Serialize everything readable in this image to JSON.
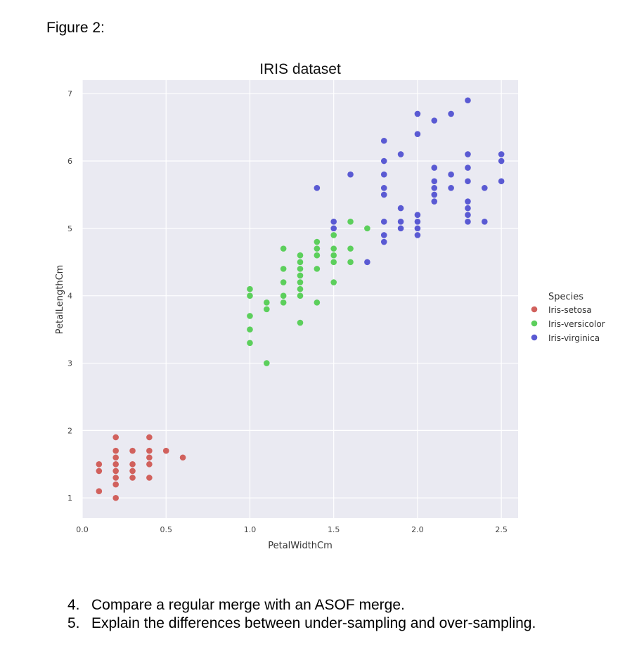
{
  "figure_caption": "Figure 2:",
  "questions": [
    {
      "number": "4.",
      "text": "Compare a regular merge with an ASOF merge."
    },
    {
      "number": "5.",
      "text": "Explain the differences between under-sampling and over-sampling."
    }
  ],
  "chart_data": {
    "type": "scatter",
    "title": "IRIS dataset",
    "xlabel": "PetalWidthCm",
    "ylabel": "PetalLengthCm",
    "xlim": [
      0,
      2.6
    ],
    "ylim": [
      0.7,
      7.2
    ],
    "xticks": [
      0.0,
      0.5,
      1.0,
      1.5,
      2.0,
      2.5
    ],
    "xtick_labels": [
      "0.0",
      "0.5",
      "1.0",
      "1.5",
      "2.0",
      "2.5"
    ],
    "yticks": [
      1,
      2,
      3,
      4,
      5,
      6,
      7
    ],
    "ytick_labels": [
      "1",
      "2",
      "3",
      "4",
      "5",
      "6",
      "7"
    ],
    "grid": true,
    "legend_title": "Species",
    "legend_position": "right",
    "series": [
      {
        "name": "Iris-setosa",
        "color": "#d1615d",
        "points": [
          [
            0.1,
            1.5
          ],
          [
            0.1,
            1.4
          ],
          [
            0.1,
            1.1
          ],
          [
            0.2,
            1.9
          ],
          [
            0.2,
            1.7
          ],
          [
            0.2,
            1.6
          ],
          [
            0.2,
            1.5
          ],
          [
            0.2,
            1.4
          ],
          [
            0.2,
            1.3
          ],
          [
            0.2,
            1.2
          ],
          [
            0.2,
            1.0
          ],
          [
            0.3,
            1.7
          ],
          [
            0.3,
            1.5
          ],
          [
            0.3,
            1.4
          ],
          [
            0.3,
            1.3
          ],
          [
            0.4,
            1.9
          ],
          [
            0.4,
            1.7
          ],
          [
            0.4,
            1.6
          ],
          [
            0.4,
            1.5
          ],
          [
            0.4,
            1.3
          ],
          [
            0.5,
            1.7
          ],
          [
            0.6,
            1.6
          ]
        ]
      },
      {
        "name": "Iris-versicolor",
        "color": "#5ccf5c",
        "points": [
          [
            1.0,
            4.1
          ],
          [
            1.0,
            4.0
          ],
          [
            1.0,
            3.7
          ],
          [
            1.0,
            3.5
          ],
          [
            1.0,
            3.3
          ],
          [
            1.1,
            3.9
          ],
          [
            1.1,
            3.8
          ],
          [
            1.1,
            3.0
          ],
          [
            1.2,
            4.7
          ],
          [
            1.2,
            4.4
          ],
          [
            1.2,
            4.2
          ],
          [
            1.2,
            4.0
          ],
          [
            1.2,
            3.9
          ],
          [
            1.3,
            4.6
          ],
          [
            1.3,
            4.5
          ],
          [
            1.3,
            4.4
          ],
          [
            1.3,
            4.3
          ],
          [
            1.3,
            4.2
          ],
          [
            1.3,
            4.1
          ],
          [
            1.3,
            4.0
          ],
          [
            1.3,
            3.6
          ],
          [
            1.4,
            4.8
          ],
          [
            1.4,
            4.7
          ],
          [
            1.4,
            4.6
          ],
          [
            1.4,
            4.4
          ],
          [
            1.4,
            3.9
          ],
          [
            1.5,
            4.9
          ],
          [
            1.5,
            4.7
          ],
          [
            1.5,
            4.6
          ],
          [
            1.5,
            4.5
          ],
          [
            1.5,
            4.2
          ],
          [
            1.6,
            5.1
          ],
          [
            1.6,
            4.7
          ],
          [
            1.6,
            4.5
          ],
          [
            1.7,
            5.0
          ]
        ]
      },
      {
        "name": "Iris-virginica",
        "color": "#5a5ad3",
        "points": [
          [
            1.4,
            5.6
          ],
          [
            1.5,
            5.1
          ],
          [
            1.5,
            5.0
          ],
          [
            1.6,
            5.8
          ],
          [
            1.7,
            4.5
          ],
          [
            1.8,
            6.3
          ],
          [
            1.8,
            6.0
          ],
          [
            1.8,
            5.8
          ],
          [
            1.8,
            5.6
          ],
          [
            1.8,
            5.5
          ],
          [
            1.8,
            5.1
          ],
          [
            1.8,
            4.9
          ],
          [
            1.8,
            4.8
          ],
          [
            1.9,
            6.1
          ],
          [
            1.9,
            5.3
          ],
          [
            1.9,
            5.1
          ],
          [
            1.9,
            5.0
          ],
          [
            2.0,
            6.7
          ],
          [
            2.0,
            6.4
          ],
          [
            2.0,
            5.2
          ],
          [
            2.0,
            5.1
          ],
          [
            2.0,
            5.0
          ],
          [
            2.0,
            4.9
          ],
          [
            2.1,
            6.6
          ],
          [
            2.1,
            5.9
          ],
          [
            2.1,
            5.7
          ],
          [
            2.1,
            5.6
          ],
          [
            2.1,
            5.5
          ],
          [
            2.1,
            5.4
          ],
          [
            2.2,
            6.7
          ],
          [
            2.2,
            5.8
          ],
          [
            2.2,
            5.6
          ],
          [
            2.3,
            6.9
          ],
          [
            2.3,
            6.1
          ],
          [
            2.3,
            5.9
          ],
          [
            2.3,
            5.7
          ],
          [
            2.3,
            5.4
          ],
          [
            2.3,
            5.3
          ],
          [
            2.3,
            5.2
          ],
          [
            2.3,
            5.1
          ],
          [
            2.4,
            5.6
          ],
          [
            2.4,
            5.1
          ],
          [
            2.5,
            6.1
          ],
          [
            2.5,
            6.0
          ],
          [
            2.5,
            5.7
          ]
        ]
      }
    ]
  }
}
